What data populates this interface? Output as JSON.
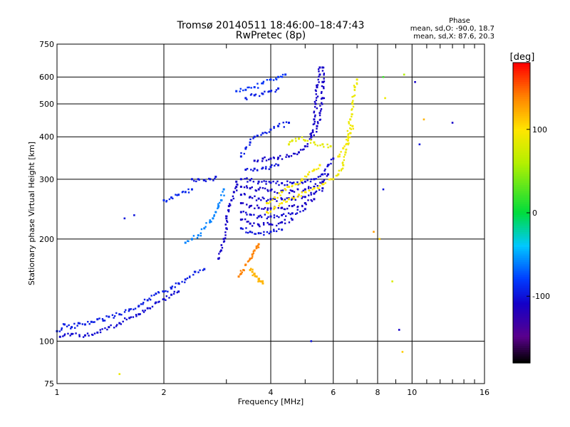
{
  "chart_data": {
    "type": "scatter",
    "title": "Tromsø 20140511 18:46:00–18:47:43",
    "subtitle": "RwPretec (8p)",
    "xlabel": "Frequency [MHz]",
    "ylabel": "Stationary phase Virtual Height [km]",
    "x_scale": "log",
    "y_scale": "log",
    "xlim": [
      1,
      16
    ],
    "ylim": [
      75,
      750
    ],
    "x_ticks": [
      1,
      2,
      4,
      6,
      8,
      10,
      16
    ],
    "y_ticks": [
      75,
      100,
      200,
      300,
      400,
      500,
      600,
      750
    ],
    "grid": true,
    "phase_stats": {
      "title": "Phase",
      "line_o": "mean, sd,O: -90.0, 18.7",
      "line_x": "mean, sd,X:  87.6, 20.3"
    },
    "colorbar": {
      "label": "[deg]",
      "range": [
        -180,
        180
      ],
      "ticks": [
        100,
        0,
        -100
      ],
      "colormap": "rainbow (black-purple-blue-cyan-green-yellow-orange-red)"
    },
    "series": [
      {
        "phase_deg": -95,
        "points": [
          [
            1.0,
            107
          ],
          [
            1.05,
            112
          ],
          [
            1.1,
            110
          ],
          [
            1.15,
            113
          ],
          [
            1.2,
            112
          ],
          [
            1.25,
            114
          ],
          [
            1.3,
            116
          ],
          [
            1.35,
            115
          ],
          [
            1.4,
            118
          ],
          [
            1.5,
            120
          ],
          [
            1.6,
            124
          ],
          [
            1.7,
            127
          ],
          [
            1.8,
            132
          ],
          [
            1.9,
            138
          ],
          [
            2.0,
            140
          ],
          [
            2.1,
            143
          ],
          [
            2.2,
            148
          ],
          [
            2.3,
            152
          ],
          [
            2.45,
            160
          ],
          [
            2.6,
            163
          ]
        ]
      },
      {
        "phase_deg": -105,
        "points": [
          [
            1.02,
            103
          ],
          [
            1.1,
            105
          ],
          [
            1.2,
            104
          ],
          [
            1.3,
            106
          ],
          [
            1.4,
            110
          ],
          [
            1.5,
            113
          ],
          [
            1.6,
            117
          ],
          [
            1.7,
            120
          ],
          [
            1.8,
            125
          ],
          [
            1.9,
            130
          ],
          [
            2.0,
            133
          ],
          [
            2.1,
            137
          ],
          [
            2.2,
            140
          ]
        ]
      },
      {
        "phase_deg": -60,
        "points": [
          [
            2.3,
            195
          ],
          [
            2.4,
            200
          ],
          [
            2.5,
            205
          ],
          [
            2.6,
            215
          ],
          [
            2.7,
            225
          ],
          [
            2.75,
            230
          ],
          [
            2.8,
            240
          ],
          [
            2.85,
            250
          ],
          [
            2.9,
            260
          ],
          [
            2.95,
            280
          ]
        ]
      },
      {
        "phase_deg": -110,
        "points": [
          [
            2.85,
            175
          ],
          [
            2.9,
            185
          ],
          [
            2.95,
            200
          ],
          [
            3.0,
            215
          ],
          [
            3.0,
            230
          ],
          [
            3.05,
            250
          ],
          [
            3.1,
            260
          ],
          [
            3.15,
            275
          ],
          [
            3.2,
            285
          ],
          [
            3.2,
            295
          ]
        ]
      },
      {
        "phase_deg": -105,
        "points": [
          [
            3.3,
            300
          ],
          [
            3.5,
            298
          ],
          [
            3.7,
            295
          ],
          [
            4.0,
            293
          ],
          [
            4.3,
            292
          ],
          [
            4.6,
            292
          ],
          [
            5.0,
            295
          ],
          [
            5.3,
            300
          ],
          [
            5.6,
            310
          ],
          [
            5.8,
            330
          ],
          [
            6.0,
            345
          ]
        ]
      },
      {
        "phase_deg": -110,
        "points": [
          [
            3.3,
            285
          ],
          [
            3.5,
            282
          ],
          [
            3.7,
            280
          ],
          [
            4.0,
            278
          ],
          [
            4.3,
            276
          ],
          [
            4.6,
            277
          ],
          [
            5.0,
            280
          ],
          [
            5.3,
            285
          ],
          [
            5.6,
            295
          ],
          [
            5.8,
            310
          ]
        ]
      },
      {
        "phase_deg": -108,
        "points": [
          [
            3.3,
            270
          ],
          [
            3.5,
            266
          ],
          [
            3.7,
            263
          ],
          [
            4.0,
            262
          ],
          [
            4.3,
            262
          ],
          [
            4.6,
            263
          ],
          [
            5.0,
            266
          ],
          [
            5.3,
            272
          ],
          [
            5.6,
            282
          ]
        ]
      },
      {
        "phase_deg": -112,
        "points": [
          [
            3.3,
            255
          ],
          [
            3.5,
            250
          ],
          [
            3.7,
            247
          ],
          [
            4.0,
            246
          ],
          [
            4.3,
            247
          ],
          [
            4.6,
            250
          ],
          [
            5.0,
            255
          ],
          [
            5.3,
            262
          ]
        ]
      },
      {
        "phase_deg": -105,
        "points": [
          [
            3.3,
            240
          ],
          [
            3.5,
            236
          ],
          [
            3.7,
            233
          ],
          [
            4.0,
            233
          ],
          [
            4.3,
            235
          ],
          [
            4.6,
            238
          ],
          [
            5.0,
            245
          ]
        ]
      },
      {
        "phase_deg": -110,
        "points": [
          [
            3.3,
            228
          ],
          [
            3.5,
            222
          ],
          [
            3.7,
            220
          ],
          [
            4.0,
            221
          ],
          [
            4.3,
            224
          ],
          [
            4.6,
            228
          ]
        ]
      },
      {
        "phase_deg": -100,
        "points": [
          [
            3.3,
            215
          ],
          [
            3.5,
            210
          ],
          [
            3.7,
            208
          ],
          [
            4.0,
            210
          ],
          [
            4.3,
            213
          ]
        ]
      },
      {
        "phase_deg": -95,
        "points": [
          [
            3.3,
            350
          ],
          [
            3.4,
            370
          ],
          [
            3.5,
            385
          ],
          [
            3.6,
            400
          ],
          [
            3.8,
            410
          ],
          [
            4.0,
            420
          ],
          [
            4.2,
            430
          ],
          [
            4.5,
            440
          ]
        ]
      },
      {
        "phase_deg": -110,
        "points": [
          [
            3.6,
            340
          ],
          [
            3.8,
            345
          ],
          [
            4.0,
            345
          ],
          [
            4.2,
            347
          ],
          [
            4.5,
            350
          ],
          [
            4.8,
            360
          ],
          [
            5.0,
            375
          ],
          [
            5.2,
            400
          ],
          [
            5.4,
            430
          ],
          [
            5.5,
            470
          ],
          [
            5.6,
            520
          ],
          [
            5.6,
            580
          ],
          [
            5.6,
            640
          ]
        ]
      },
      {
        "phase_deg": -110,
        "points": [
          [
            5.2,
            400
          ],
          [
            5.3,
            450
          ],
          [
            5.35,
            500
          ],
          [
            5.4,
            560
          ],
          [
            5.5,
            610
          ],
          [
            5.5,
            640
          ]
        ]
      },
      {
        "phase_deg": -100,
        "points": [
          [
            3.4,
            320
          ],
          [
            3.6,
            322
          ],
          [
            3.8,
            324
          ],
          [
            4.0,
            326
          ],
          [
            4.2,
            330
          ]
        ]
      },
      {
        "phase_deg": -85,
        "points": [
          [
            3.2,
            545
          ],
          [
            3.4,
            550
          ],
          [
            3.6,
            560
          ],
          [
            3.8,
            575
          ],
          [
            4.0,
            590
          ],
          [
            4.2,
            600
          ],
          [
            4.4,
            610
          ]
        ]
      },
      {
        "phase_deg": -95,
        "points": [
          [
            3.4,
            520
          ],
          [
            3.6,
            530
          ],
          [
            3.8,
            535
          ],
          [
            4.0,
            545
          ],
          [
            4.2,
            555
          ]
        ]
      },
      {
        "phase_deg": -100,
        "points": [
          [
            2.4,
            300
          ],
          [
            2.5,
            300
          ],
          [
            2.6,
            298
          ],
          [
            2.7,
            300
          ],
          [
            2.8,
            305
          ]
        ]
      },
      {
        "phase_deg": 140,
        "points": [
          [
            3.25,
            155
          ],
          [
            3.3,
            158
          ],
          [
            3.35,
            162
          ],
          [
            3.4,
            168
          ],
          [
            3.5,
            175
          ],
          [
            3.55,
            180
          ],
          [
            3.6,
            185
          ],
          [
            3.65,
            190
          ],
          [
            3.7,
            193
          ]
        ]
      },
      {
        "phase_deg": 120,
        "points": [
          [
            3.5,
            162
          ],
          [
            3.55,
            160
          ],
          [
            3.6,
            158
          ],
          [
            3.65,
            155
          ],
          [
            3.7,
            152
          ],
          [
            3.75,
            150
          ],
          [
            3.8,
            148
          ]
        ]
      },
      {
        "phase_deg": 95,
        "points": [
          [
            3.9,
            255
          ],
          [
            4.1,
            265
          ],
          [
            4.3,
            275
          ],
          [
            4.5,
            285
          ],
          [
            4.7,
            290
          ],
          [
            4.9,
            300
          ],
          [
            5.1,
            310
          ],
          [
            5.3,
            320
          ],
          [
            5.5,
            330
          ]
        ]
      },
      {
        "phase_deg": 100,
        "points": [
          [
            3.9,
            240
          ],
          [
            4.1,
            248
          ],
          [
            4.3,
            255
          ],
          [
            4.5,
            262
          ],
          [
            4.8,
            270
          ],
          [
            5.0,
            275
          ],
          [
            5.3,
            282
          ],
          [
            5.6,
            290
          ],
          [
            5.9,
            300
          ]
        ]
      },
      {
        "phase_deg": 85,
        "points": [
          [
            4.5,
            380
          ],
          [
            4.6,
            390
          ],
          [
            4.8,
            395
          ],
          [
            5.0,
            390
          ],
          [
            5.3,
            385
          ],
          [
            5.6,
            380
          ],
          [
            5.9,
            375
          ]
        ]
      },
      {
        "phase_deg": 90,
        "points": [
          [
            6.0,
            300
          ],
          [
            6.2,
            310
          ],
          [
            6.4,
            330
          ],
          [
            6.5,
            360
          ],
          [
            6.6,
            400
          ],
          [
            6.7,
            450
          ],
          [
            6.8,
            500
          ],
          [
            6.9,
            560
          ],
          [
            7.0,
            590
          ]
        ]
      },
      {
        "phase_deg": 95,
        "points": [
          [
            6.2,
            350
          ],
          [
            6.4,
            370
          ],
          [
            6.6,
            390
          ],
          [
            6.7,
            410
          ],
          [
            6.8,
            430
          ]
        ]
      },
      {
        "phase_deg": -90,
        "points": [
          [
            2.0,
            260
          ],
          [
            2.1,
            265
          ],
          [
            2.2,
            270
          ],
          [
            2.3,
            275
          ],
          [
            2.4,
            280
          ]
        ]
      }
    ],
    "scattered_points": [
      {
        "x": 1.55,
        "y": 230,
        "phase_deg": -100
      },
      {
        "x": 1.65,
        "y": 235,
        "phase_deg": -100
      },
      {
        "x": 1.5,
        "y": 80,
        "phase_deg": 90
      },
      {
        "x": 5.2,
        "y": 100,
        "phase_deg": -100
      },
      {
        "x": 8.3,
        "y": 280,
        "phase_deg": -100
      },
      {
        "x": 8.3,
        "y": 600,
        "phase_deg": 20
      },
      {
        "x": 8.4,
        "y": 520,
        "phase_deg": 90
      },
      {
        "x": 8.8,
        "y": 150,
        "phase_deg": 80
      },
      {
        "x": 9.4,
        "y": 93,
        "phase_deg": 110
      },
      {
        "x": 9.5,
        "y": 610,
        "phase_deg": 60
      },
      {
        "x": 10.2,
        "y": 580,
        "phase_deg": -110
      },
      {
        "x": 10.5,
        "y": 380,
        "phase_deg": -100
      },
      {
        "x": 10.8,
        "y": 450,
        "phase_deg": 120
      },
      {
        "x": 13.0,
        "y": 440,
        "phase_deg": -110
      },
      {
        "x": 9.2,
        "y": 108,
        "phase_deg": -110
      },
      {
        "x": 7.8,
        "y": 210,
        "phase_deg": 130
      },
      {
        "x": 8.1,
        "y": 200,
        "phase_deg": 110
      }
    ]
  }
}
